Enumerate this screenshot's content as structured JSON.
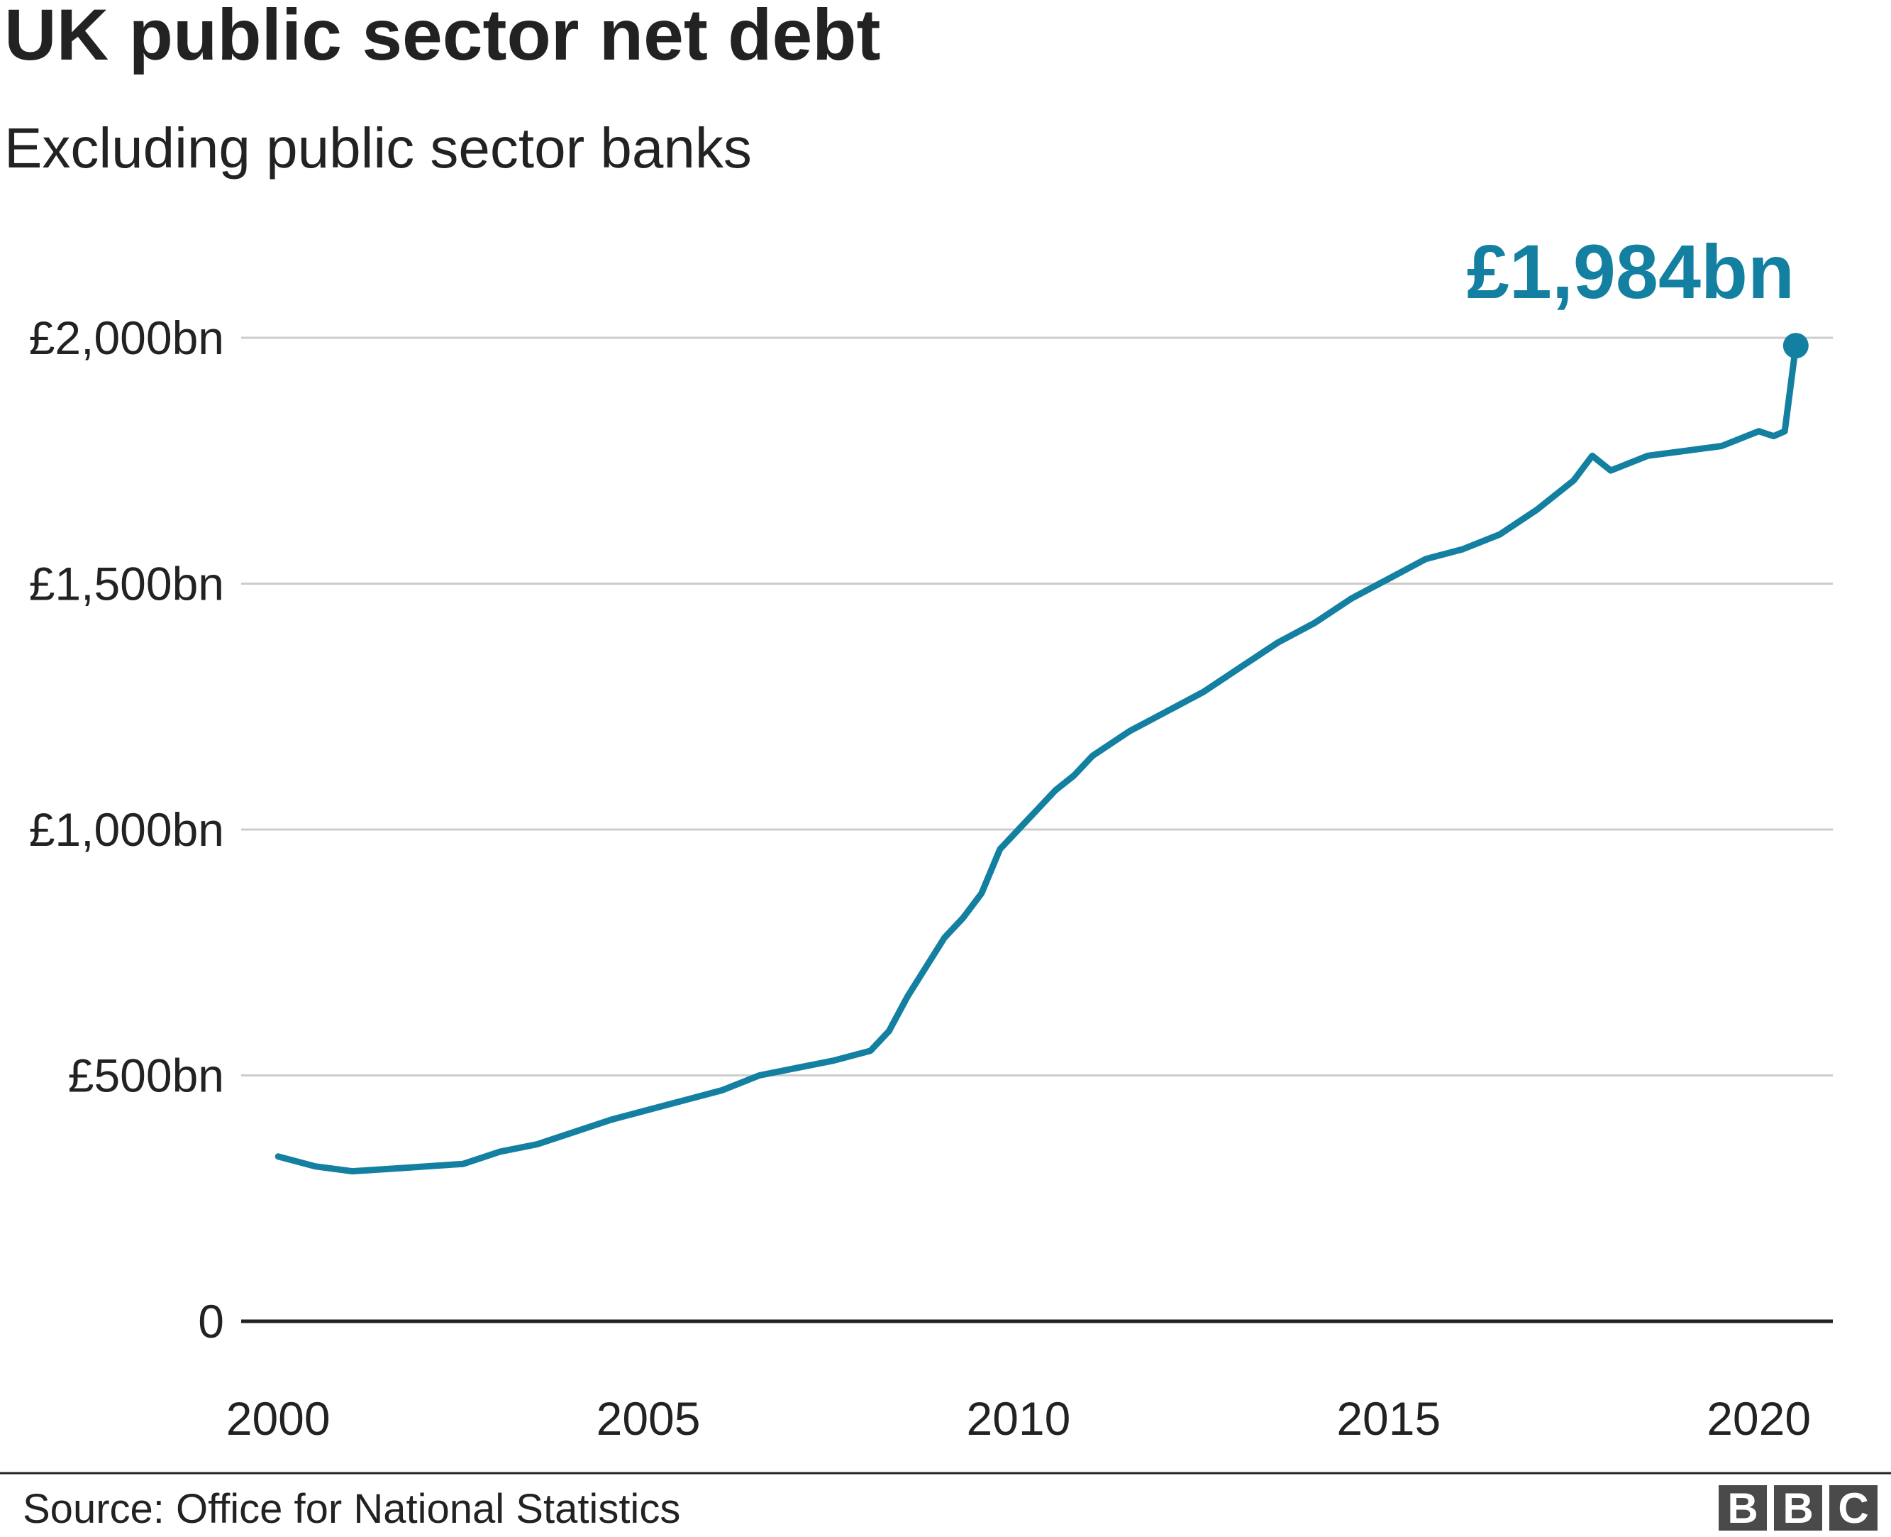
{
  "colors": {
    "line": "#1380A1",
    "grid": "#cccccc",
    "baseline": "#222222",
    "text": "#222222",
    "logo_box": "#4a4a4a"
  },
  "footer": {
    "source": "Source: Office for National Statistics",
    "logo": [
      "B",
      "B",
      "C"
    ]
  },
  "chart_data": {
    "type": "line",
    "title": "UK public sector net debt",
    "subtitle": "Excluding public sector banks",
    "xlabel": "",
    "ylabel": "",
    "xlim": [
      2000,
      2021
    ],
    "ylim": [
      0,
      2000
    ],
    "y_ticks": [
      0,
      500,
      1000,
      1500,
      2000
    ],
    "y_tick_labels": [
      "0",
      "£500bn",
      "£1,000bn",
      "£1,500bn",
      "£2,000bn"
    ],
    "x_ticks": [
      2000,
      2005,
      2010,
      2015,
      2020
    ],
    "x_tick_labels": [
      "2000",
      "2005",
      "2010",
      "2015",
      "2020"
    ],
    "grid": true,
    "legend": "none",
    "annotation": {
      "text": "£1,984bn",
      "x": 2020.5,
      "y": 1984
    },
    "series": [
      {
        "x": [
          2000.0,
          2000.5,
          2001.0,
          2001.5,
          2002.0,
          2002.5,
          2003.0,
          2003.5,
          2004.0,
          2004.5,
          2005.0,
          2005.5,
          2006.0,
          2006.5,
          2007.0,
          2007.5,
          2008.0,
          2008.25,
          2008.5,
          2008.75,
          2009.0,
          2009.25,
          2009.5,
          2009.75,
          2010.0,
          2010.25,
          2010.5,
          2010.75,
          2011.0,
          2011.5,
          2012.0,
          2012.5,
          2013.0,
          2013.5,
          2014.0,
          2014.5,
          2015.0,
          2015.5,
          2016.0,
          2016.5,
          2017.0,
          2017.5,
          2017.75,
          2018.0,
          2018.5,
          2019.0,
          2019.5,
          2020.0,
          2020.2,
          2020.35,
          2020.5
        ],
        "values": [
          335,
          315,
          305,
          310,
          315,
          320,
          345,
          360,
          385,
          410,
          430,
          450,
          470,
          500,
          515,
          530,
          550,
          590,
          660,
          720,
          780,
          820,
          870,
          960,
          1000,
          1040,
          1080,
          1110,
          1150,
          1200,
          1240,
          1280,
          1330,
          1380,
          1420,
          1470,
          1510,
          1550,
          1570,
          1600,
          1650,
          1710,
          1760,
          1730,
          1760,
          1770,
          1780,
          1810,
          1800,
          1810,
          1984
        ]
      }
    ]
  }
}
